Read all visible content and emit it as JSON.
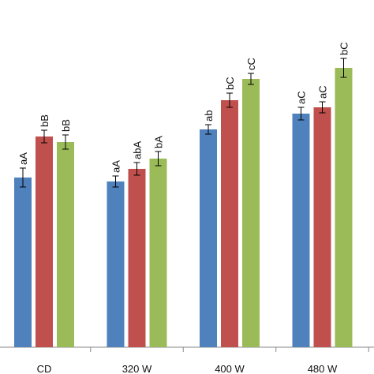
{
  "chart_data": {
    "type": "bar",
    "categories": [
      "CD",
      "320 W",
      "400 W",
      "480 W"
    ],
    "ylim": [
      0,
      440
    ],
    "series": [
      {
        "color": "#4f81bd",
        "values": [
          215,
          210,
          276,
          296
        ],
        "errors": [
          12,
          7,
          6,
          8
        ],
        "labels": [
          "aA",
          "aA",
          "ab",
          "aC"
        ]
      },
      {
        "color": "#c0504d",
        "values": [
          267,
          226,
          313,
          304
        ],
        "errors": [
          8,
          8,
          9,
          7
        ],
        "labels": [
          "bB",
          "abA",
          "bC",
          "aC"
        ]
      },
      {
        "color": "#9bbb59",
        "values": [
          260,
          239,
          340,
          354
        ],
        "errors": [
          9,
          9,
          7,
          12
        ],
        "labels": [
          "bB",
          "bA",
          "cC",
          "bC"
        ]
      }
    ]
  }
}
